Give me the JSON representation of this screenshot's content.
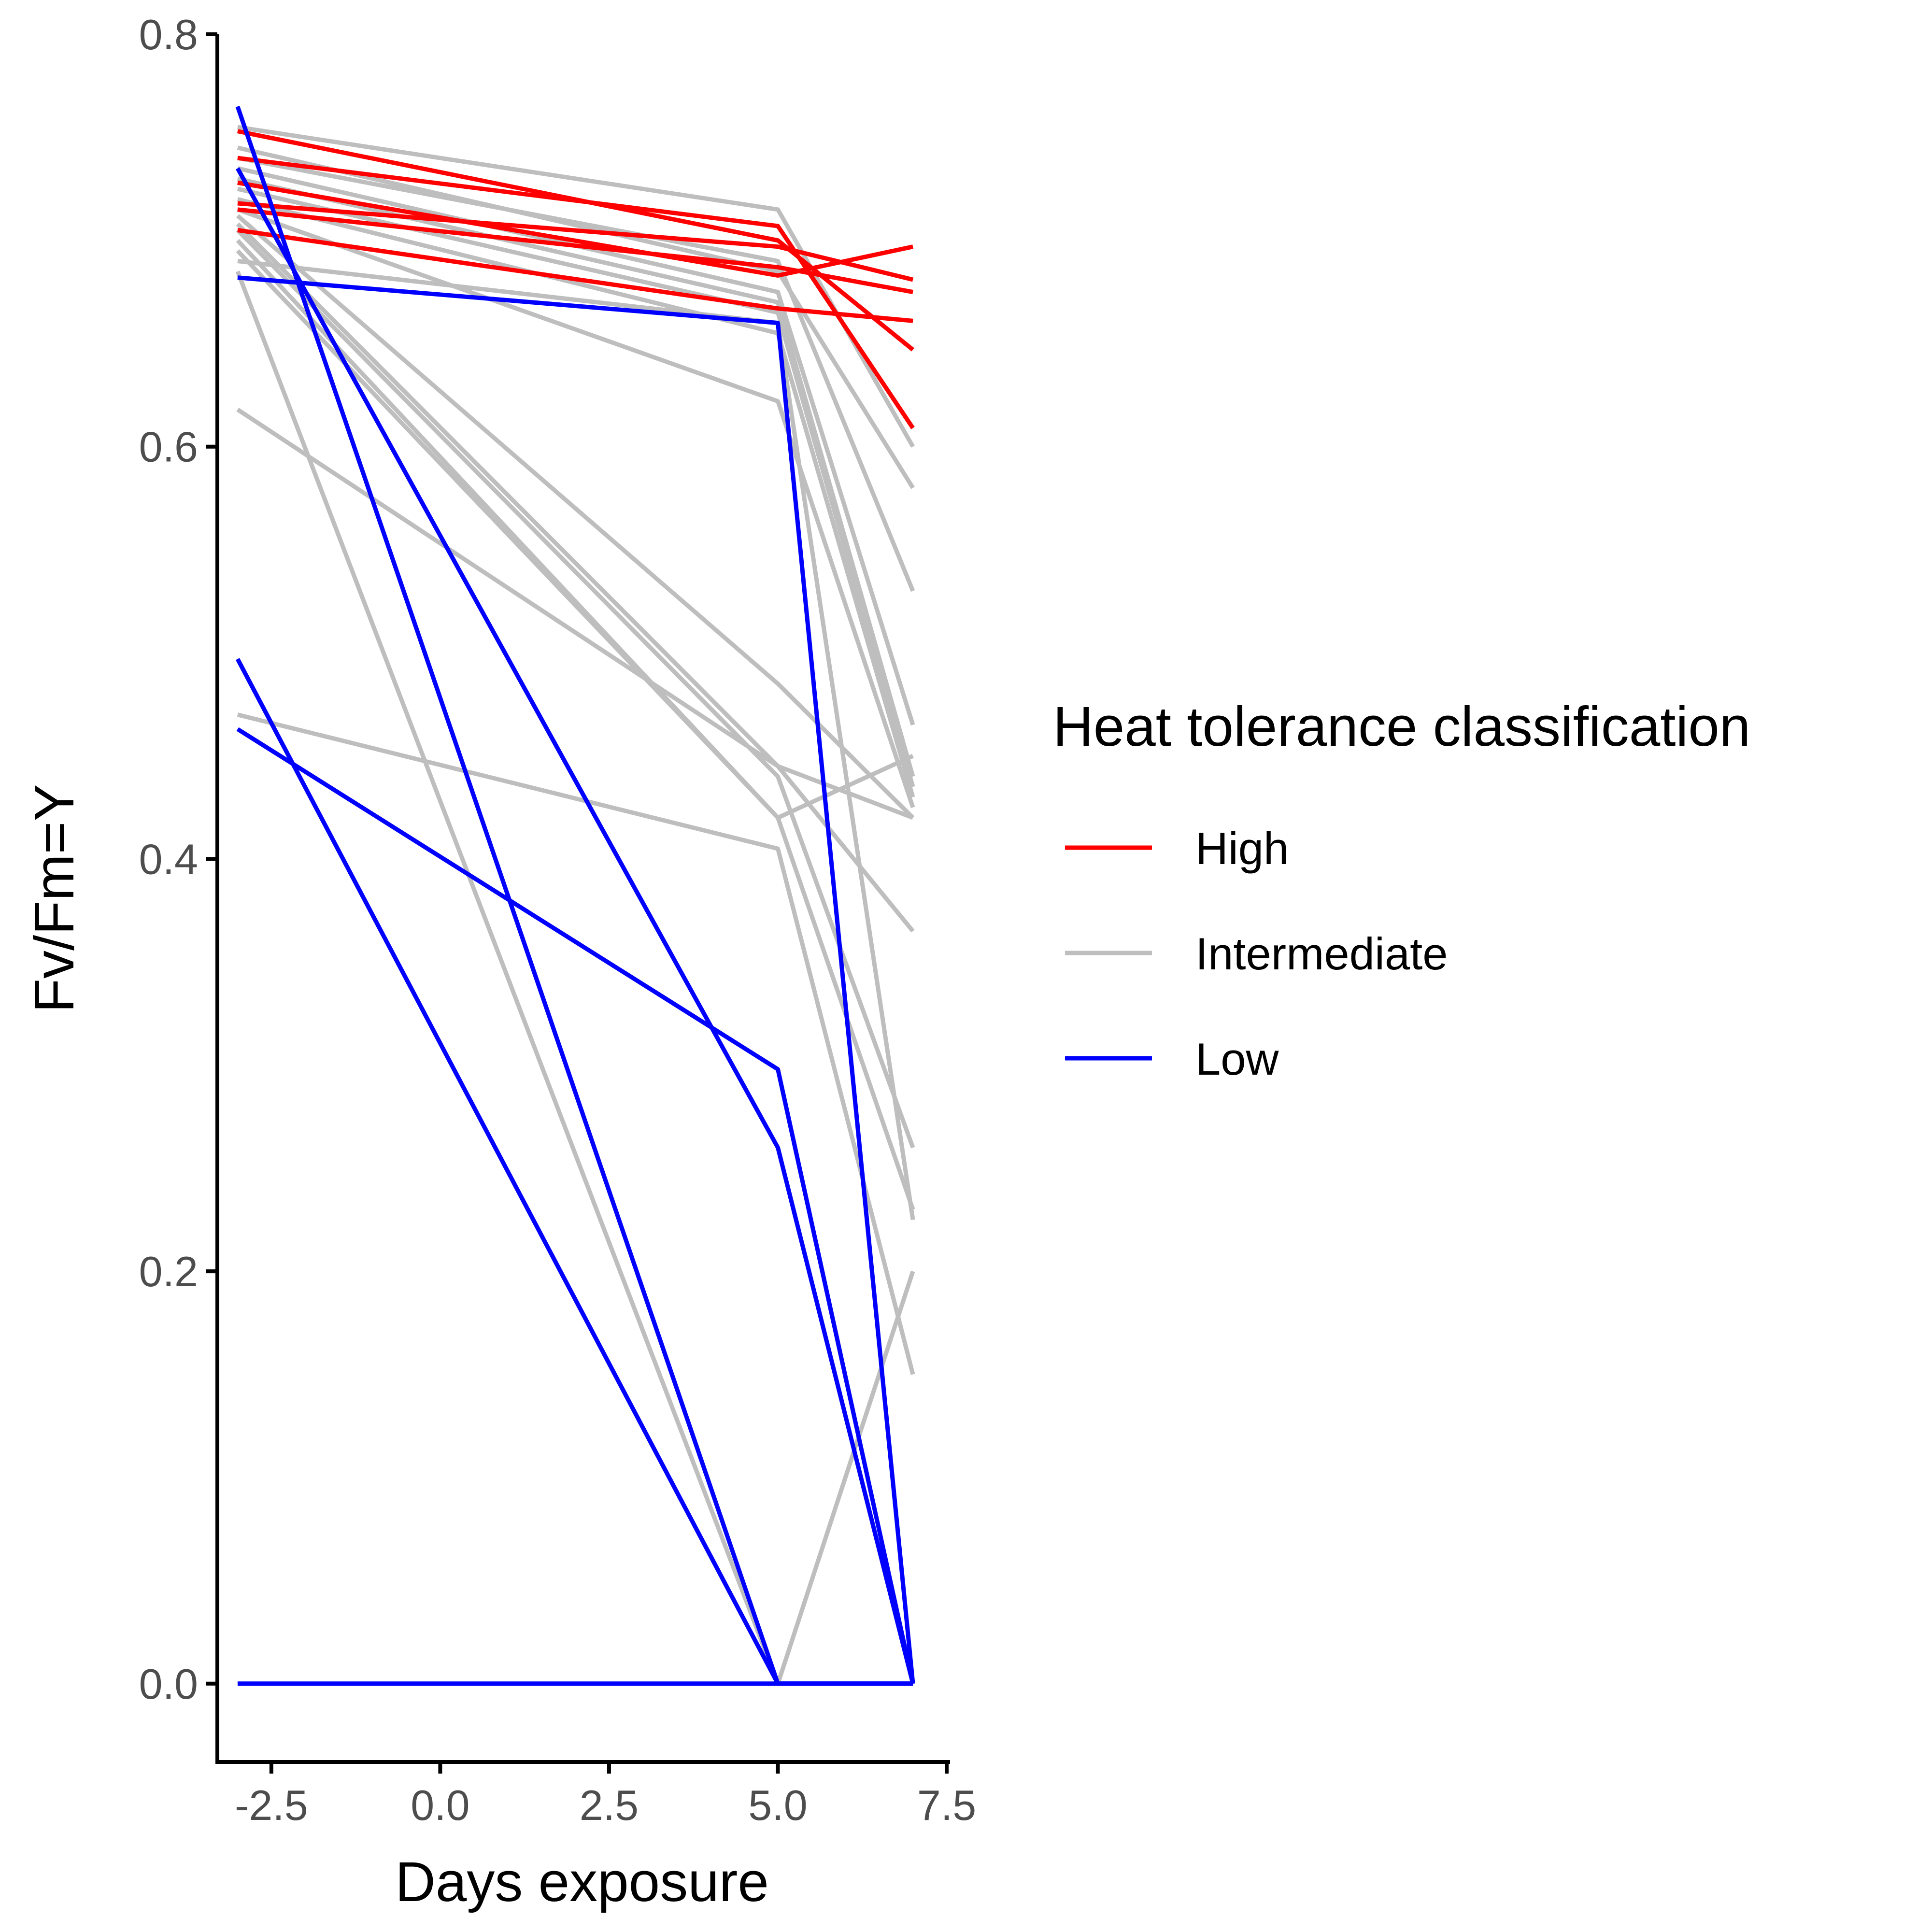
{
  "chart_data": {
    "type": "line",
    "title": "",
    "xlabel": "Days exposure",
    "ylabel": "Fv/Fm=Y",
    "xlim": [
      -3.3,
      7.55
    ],
    "ylim": [
      -0.038,
      0.8
    ],
    "x_ticks": [
      -2.5,
      0.0,
      2.5,
      5.0,
      7.5
    ],
    "x_tick_labels": [
      "-2.5",
      "0.0",
      "2.5",
      "5.0",
      "7.5"
    ],
    "y_ticks": [
      0.0,
      0.2,
      0.4,
      0.6,
      0.8
    ],
    "y_tick_labels": [
      "0.0",
      "0.2",
      "0.4",
      "0.6",
      "0.8"
    ],
    "grid": false,
    "legend_placement": "right",
    "x": [
      -3,
      5,
      7
    ],
    "legend": {
      "title": "Heat tolerance classification",
      "entries": [
        {
          "label": "High",
          "color": "#ff0000"
        },
        {
          "label": "Intermediate",
          "color": "#bebebe"
        },
        {
          "label": "Low",
          "color": "#0000ff"
        }
      ]
    },
    "series": [
      {
        "group": "Intermediate",
        "values": [
          0.755,
          0.715,
          0.6
        ]
      },
      {
        "group": "Intermediate",
        "values": [
          0.745,
          0.685,
          0.58
        ]
      },
      {
        "group": "Intermediate",
        "values": [
          0.74,
          0.69,
          0.53
        ]
      },
      {
        "group": "Intermediate",
        "values": [
          0.735,
          0.675,
          0.465
        ]
      },
      {
        "group": "Intermediate",
        "values": [
          0.73,
          0.67,
          0.44
        ]
      },
      {
        "group": "Intermediate",
        "values": [
          0.725,
          0.665,
          0.435
        ]
      },
      {
        "group": "Intermediate",
        "values": [
          0.72,
          0.655,
          0.43
        ]
      },
      {
        "group": "Intermediate",
        "values": [
          0.715,
          0.622,
          0.425
        ]
      },
      {
        "group": "Intermediate",
        "values": [
          0.712,
          0.485,
          0.42
        ]
      },
      {
        "group": "Intermediate",
        "values": [
          0.708,
          0.445,
          0.365
        ]
      },
      {
        "group": "Intermediate",
        "values": [
          0.705,
          0.44,
          0.26
        ]
      },
      {
        "group": "Intermediate",
        "values": [
          0.7,
          0.42,
          0.45
        ]
      },
      {
        "group": "Intermediate",
        "values": [
          0.695,
          0.42,
          0.23
        ]
      },
      {
        "group": "Intermediate",
        "values": [
          0.69,
          0.66,
          0.225
        ]
      },
      {
        "group": "Intermediate",
        "values": [
          0.685,
          0.0,
          0.2
        ]
      },
      {
        "group": "Intermediate",
        "values": [
          0.618,
          0.445,
          0.42
        ]
      },
      {
        "group": "Intermediate",
        "values": [
          0.47,
          0.405,
          0.15
        ]
      },
      {
        "group": "High",
        "values": [
          0.753,
          0.7,
          0.647
        ]
      },
      {
        "group": "High",
        "values": [
          0.74,
          0.707,
          0.609
        ]
      },
      {
        "group": "High",
        "values": [
          0.728,
          0.683,
          0.697
        ]
      },
      {
        "group": "High",
        "values": [
          0.718,
          0.697,
          0.681
        ]
      },
      {
        "group": "High",
        "values": [
          0.715,
          0.687,
          0.675
        ]
      },
      {
        "group": "High",
        "values": [
          0.705,
          0.667,
          0.661
        ]
      },
      {
        "group": "Low",
        "values": [
          0.765,
          0.0,
          0.0
        ]
      },
      {
        "group": "Low",
        "values": [
          0.735,
          0.26,
          0.0
        ]
      },
      {
        "group": "Low",
        "values": [
          0.682,
          0.66,
          0.0
        ]
      },
      {
        "group": "Low",
        "values": [
          0.497,
          0.0,
          0.0
        ]
      },
      {
        "group": "Low",
        "values": [
          0.463,
          0.298,
          0.0
        ]
      },
      {
        "group": "Low",
        "values": [
          0.0,
          0.0,
          0.0
        ]
      }
    ]
  }
}
